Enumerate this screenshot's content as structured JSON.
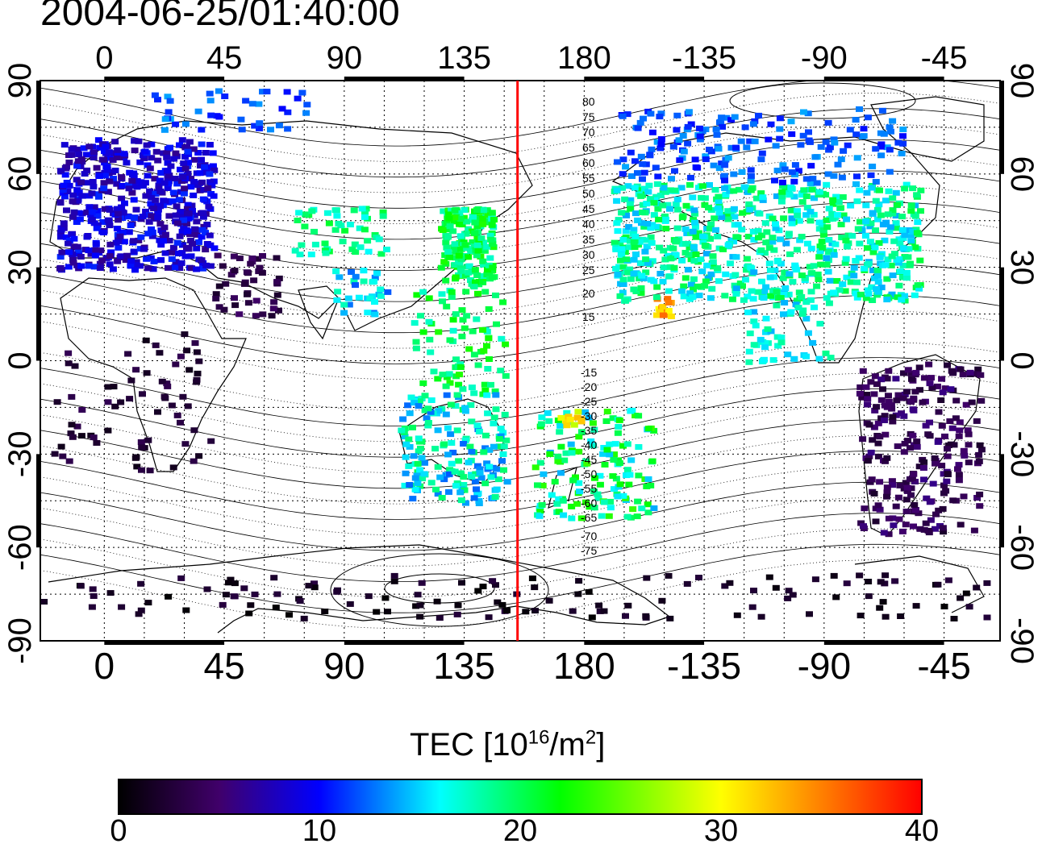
{
  "title": "2004-06-25/01:40:00",
  "map": {
    "lon_ticks": [
      "0",
      "45",
      "90",
      "135",
      "180",
      "-135",
      "-90",
      "-45"
    ],
    "lat_ticks": [
      "90",
      "60",
      "30",
      "0",
      "-30",
      "-60",
      "-90"
    ],
    "marker_lon": 155,
    "marker_color": "#ff0000",
    "contour_labels_north": [
      "80",
      "75",
      "70",
      "65",
      "60",
      "55",
      "50",
      "45",
      "40",
      "35",
      "30",
      "25",
      "20",
      "15"
    ],
    "contour_labels_south": [
      "-15",
      "-20",
      "-25",
      "-30",
      "-35",
      "-40",
      "-45",
      "-50",
      "-55",
      "-60",
      "-65",
      "-70",
      "-75"
    ]
  },
  "colorbar": {
    "title_main": "TEC  [10",
    "title_sup1": "16",
    "title_mid": "/m",
    "title_sup2": "2",
    "title_end": "]",
    "min": 0,
    "max": 40,
    "tick_labels": [
      "0",
      "10",
      "20",
      "30",
      "40"
    ],
    "colors": [
      "#000000",
      "#40006a",
      "#0000ff",
      "#00ffff",
      "#00ff00",
      "#ffff00",
      "#ff8000",
      "#ff0000"
    ]
  }
}
